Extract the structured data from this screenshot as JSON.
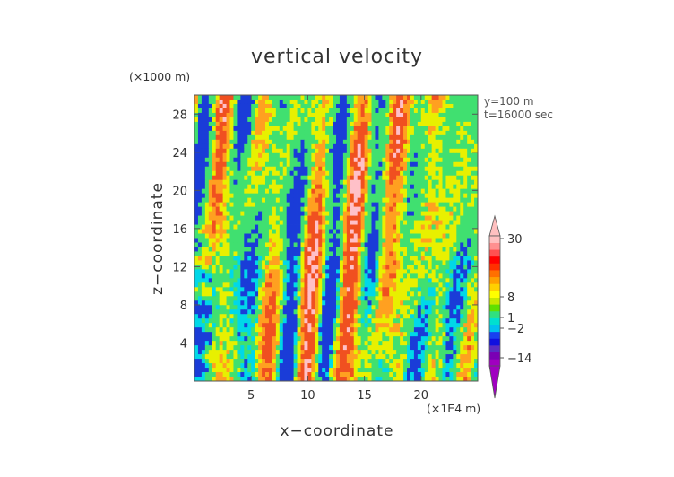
{
  "chart_data": {
    "type": "heatmap",
    "title": "vertical velocity",
    "xlabel": "x−coordinate",
    "ylabel": "z−coordinate",
    "x_unit": "(×1E4 m)",
    "y_unit": "(×1000 m)",
    "annotations": [
      "y=100 m",
      "t=16000 sec"
    ],
    "xlim": [
      0,
      25
    ],
    "ylim": [
      0,
      30
    ],
    "x_ticks": [
      5,
      10,
      15,
      20
    ],
    "x_tick_labels": [
      "5",
      "10",
      "15",
      "20"
    ],
    "y_ticks": [
      4,
      8,
      12,
      16,
      20,
      24,
      28
    ],
    "y_tick_labels": [
      "4",
      "8",
      "12",
      "16",
      "20",
      "24",
      "28"
    ],
    "colorbar": {
      "labels": [
        "30",
        "8",
        "1",
        "−2",
        "−14"
      ],
      "label_values": [
        30,
        8,
        1,
        -2,
        -14
      ],
      "colors": [
        "#a000c0",
        "#7a00b4",
        "#5a2cc4",
        "#1010e0",
        "#1840f0",
        "#00c0f0",
        "#00e0d0",
        "#30e080",
        "#60e000",
        "#c8e800",
        "#ffff00",
        "#ffd000",
        "#ffa000",
        "#ff7000",
        "#ff3000",
        "#ff0000",
        "#ff5050",
        "#ff9090",
        "#ffc0c0"
      ]
    },
    "field_palette": {
      "blue": "#1a3cd8",
      "cyan": "#00d8e8",
      "green": "#40e070",
      "yellow": "#e8f000",
      "orange": "#ffa020",
      "red": "#f05020",
      "pink": "#ffc0c8"
    }
  }
}
